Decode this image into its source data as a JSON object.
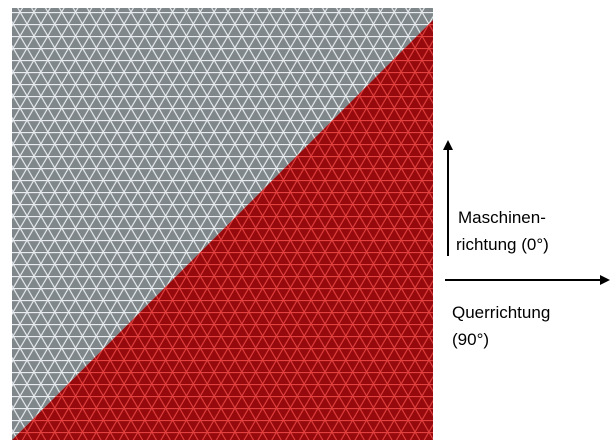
{
  "labels": {
    "machine_direction": [
      "Maschinen-",
      "richtung (0°)"
    ],
    "cross_direction": [
      "Querrichtung",
      "(90°)"
    ]
  }
}
